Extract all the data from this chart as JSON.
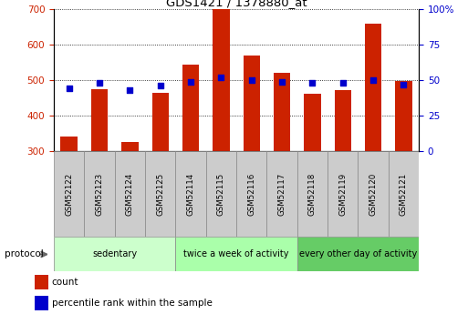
{
  "title": "GDS1421 / 1378880_at",
  "samples": [
    "GSM52122",
    "GSM52123",
    "GSM52124",
    "GSM52125",
    "GSM52114",
    "GSM52115",
    "GSM52116",
    "GSM52117",
    "GSM52118",
    "GSM52119",
    "GSM52120",
    "GSM52121"
  ],
  "counts": [
    340,
    475,
    325,
    465,
    545,
    700,
    570,
    520,
    462,
    472,
    660,
    497
  ],
  "percentiles": [
    44,
    48,
    43,
    46,
    49,
    52,
    50,
    49,
    48,
    48,
    50,
    47
  ],
  "bar_color": "#cc2200",
  "dot_color": "#0000cc",
  "ylim_left": [
    300,
    700
  ],
  "ylim_right": [
    0,
    100
  ],
  "yticks_left": [
    300,
    400,
    500,
    600,
    700
  ],
  "yticks_right": [
    0,
    25,
    50,
    75,
    100
  ],
  "grid_color": "#000000",
  "groups": [
    {
      "label": "sedentary",
      "start": 0,
      "end": 4,
      "color": "#ccffcc"
    },
    {
      "label": "twice a week of activity",
      "start": 4,
      "end": 8,
      "color": "#aaffaa"
    },
    {
      "label": "every other day of activity",
      "start": 8,
      "end": 12,
      "color": "#66cc66"
    }
  ],
  "protocol_label": "protocol",
  "legend_count_label": "count",
  "legend_pct_label": "percentile rank within the sample",
  "bar_width": 0.55,
  "ylabel_left_color": "#cc2200",
  "ylabel_right_color": "#0000cc",
  "sample_box_color": "#cccccc",
  "sample_box_edge": "#888888",
  "fig_width": 5.13,
  "fig_height": 3.45,
  "dpi": 100
}
